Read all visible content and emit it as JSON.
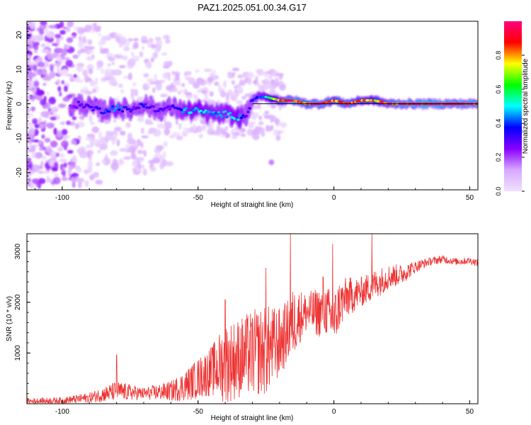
{
  "chart_data": [
    {
      "type": "heatmap",
      "title": "PAZ1.2025.051.00.34.G17",
      "xlabel": "Height of straight line (km)",
      "ylabel": "Frequency (Hz)",
      "xlim": [
        -113,
        53
      ],
      "ylim": [
        -25,
        24
      ],
      "xticks": [
        -100,
        -50,
        0,
        50
      ],
      "yticks": [
        -20,
        -10,
        0,
        10,
        20
      ],
      "colorbar": {
        "label": "Normalized spectral amplitude",
        "range": [
          0,
          1
        ],
        "ticks": [
          0.0,
          0.2,
          0.4,
          0.6,
          0.8
        ],
        "colormap": [
          "#f0e0ff",
          "#d8a8ff",
          "#8800ff",
          "#0000ff",
          "#00ffff",
          "#00ff00",
          "#ffff00",
          "#ff0000",
          "#ff0080"
        ]
      },
      "ridge": {
        "x": [
          -97,
          -93,
          -90,
          -85,
          -80,
          -75,
          -70,
          -65,
          -60,
          -55,
          -50,
          -45,
          -40,
          -35,
          -32,
          -30,
          -28,
          -25,
          -20,
          -15,
          -10,
          -5,
          0,
          5,
          10,
          15,
          20,
          25,
          30,
          35,
          40,
          45,
          50,
          53
        ],
        "freq": [
          -1,
          0,
          -1,
          -2,
          -1,
          -2,
          0,
          -2,
          -1,
          -2,
          -2,
          -3,
          -3,
          -4,
          -3,
          1,
          2,
          2,
          1,
          1,
          0,
          0,
          1,
          0,
          1,
          1,
          0,
          0,
          0,
          0,
          0,
          0,
          0,
          0
        ],
        "amp": [
          0.25,
          0.3,
          0.3,
          0.35,
          0.45,
          0.3,
          0.35,
          0.3,
          0.3,
          0.45,
          0.5,
          0.45,
          0.45,
          0.5,
          0.3,
          0.35,
          0.4,
          0.5,
          0.85,
          0.95,
          0.9,
          0.95,
          0.85,
          0.9,
          0.85,
          0.8,
          0.9,
          0.95,
          0.95,
          0.95,
          0.95,
          0.95,
          0.95,
          0.95
        ]
      },
      "isolated_blob": {
        "x": -23,
        "freq": -17,
        "amp": 0.15
      }
    },
    {
      "type": "line",
      "xlabel": "Height of straight line (km)",
      "ylabel": "SNR (10 * v/v)",
      "xlim": [
        -113,
        53
      ],
      "ylim": [
        0,
        3350
      ],
      "xticks": [
        -100,
        -50,
        0,
        50
      ],
      "yticks": [
        1000,
        2000,
        3000
      ],
      "color": "#ee3333",
      "envelope": {
        "x": [
          -113,
          -100,
          -90,
          -80,
          -70,
          -60,
          -55,
          -50,
          -45,
          -40,
          -35,
          -30,
          -25,
          -20,
          -16,
          -15,
          -12,
          -10,
          -5,
          -3,
          0,
          2,
          5,
          10,
          15,
          20,
          25,
          30,
          35,
          40,
          45,
          50,
          53
        ],
        "mean": [
          50,
          60,
          120,
          250,
          200,
          250,
          350,
          500,
          650,
          800,
          900,
          1000,
          1050,
          1200,
          1500,
          1600,
          1750,
          1800,
          1800,
          1850,
          1600,
          1950,
          2100,
          2200,
          2350,
          2500,
          2550,
          2700,
          2800,
          2850,
          2800,
          2820,
          2780
        ],
        "spread": [
          60,
          70,
          100,
          200,
          120,
          200,
          300,
          400,
          500,
          800,
          800,
          850,
          900,
          700,
          600,
          700,
          500,
          400,
          500,
          500,
          600,
          500,
          400,
          300,
          300,
          250,
          200,
          120,
          80,
          80,
          70,
          70,
          70
        ]
      },
      "peaks": [
        {
          "x": -80,
          "y": 960
        },
        {
          "x": -40,
          "y": 2050
        },
        {
          "x": -25,
          "y": 2680
        },
        {
          "x": -16,
          "y": 3350
        },
        {
          "x": -4,
          "y": 2500
        },
        {
          "x": -0.5,
          "y": 3150
        },
        {
          "x": 14,
          "y": 3350
        }
      ]
    }
  ]
}
